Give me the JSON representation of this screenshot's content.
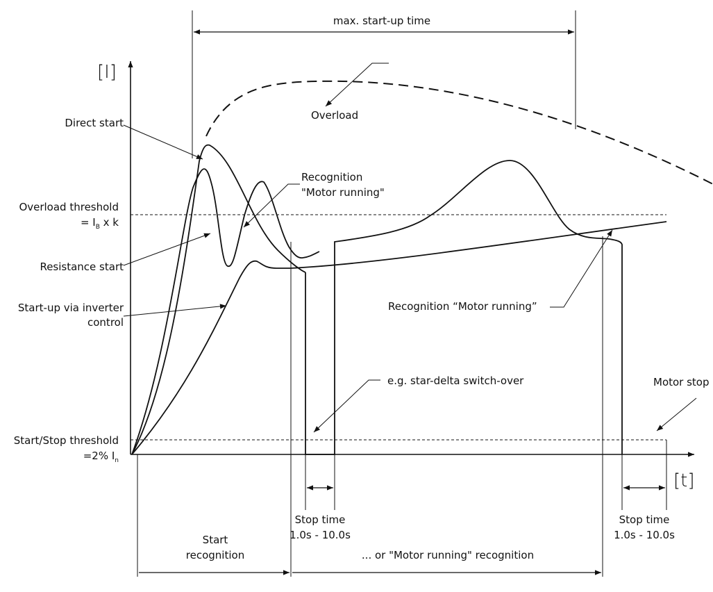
{
  "labels": {
    "max_startup_time": "max. start-up time",
    "y_axis": "[I]",
    "x_axis": "[t]",
    "direct_start": "Direct start",
    "overload": "Overload",
    "recognition_top_line1": "Recognition",
    "recognition_top_line2": "\"Motor running\"",
    "overload_threshold_line1": "Overload threshold",
    "overload_threshold_prefix": "= I",
    "overload_threshold_sub": "B",
    "overload_threshold_suffix": " x k",
    "resistance_start": "Resistance start",
    "startup_inverter_line1": "Start-up via inverter",
    "startup_inverter_line2": "control",
    "recognition_right": "Recognition “Motor running”",
    "star_delta": "e.g. star-delta switch-over",
    "motor_stop": "Motor stop",
    "start_stop_threshold_line1": "Start/Stop threshold",
    "start_stop_threshold_prefix": "=2% I",
    "start_stop_threshold_sub": "n",
    "stop_time_1_line1": "Stop time",
    "stop_time_1_line2": "1.0s - 10.0s",
    "stop_time_2_line1": "Stop time",
    "stop_time_2_line2": "1.0s - 10.0s",
    "start_recognition_line1": "Start",
    "start_recognition_line2": "recognition",
    "motor_running_recognition": "... or \"Motor running\" recognition"
  }
}
